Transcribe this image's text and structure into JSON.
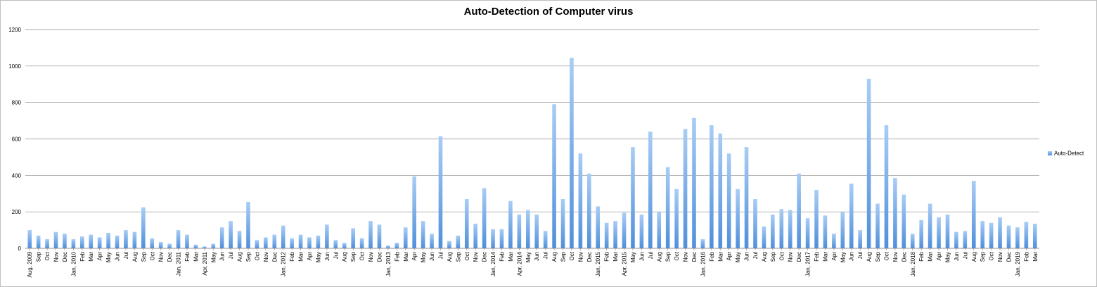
{
  "chart_data": {
    "type": "bar",
    "title": "Auto-Detection of Computer virus",
    "xlabel": "",
    "ylabel": "",
    "ylim": [
      0,
      1200
    ],
    "yticks": [
      0,
      200,
      400,
      600,
      800,
      1000,
      1200
    ],
    "grid": true,
    "legend_position": "right",
    "colors": {
      "bar_top": "#a9cdf5",
      "bar_bottom": "#4f8fdc",
      "grid": "#8c8c8c",
      "axis": "#8c8c8c"
    },
    "categories": [
      "Aug, 2009",
      "Sep",
      "Oct",
      "Nov",
      "Dec",
      "Jan, 2010",
      "Feb",
      "Mar",
      "Apr",
      "May",
      "Jun",
      "Jul",
      "Aug",
      "Sep",
      "Oct",
      "Nov",
      "Dec",
      "Jan, 2011",
      "Feb",
      "Mar",
      "Apr, 2011",
      "May",
      "Jun",
      "Jul",
      "Aug",
      "Sep",
      "Oct",
      "Nov",
      "Dec",
      "Jan, 2012",
      "Feb",
      "Mar",
      "Apr",
      "May",
      "Jun",
      "Jul",
      "Aug",
      "Sep",
      "Oct",
      "Nov",
      "Dec",
      "Jan, 2013",
      "Feb",
      "Mar",
      "Apr",
      "May",
      "Jun",
      "Jul",
      "Aug",
      "Sep",
      "Oct",
      "Nov",
      "Dec",
      "Jan, 2014",
      "Feb",
      "Mar",
      "Apr, 2014",
      "May",
      "Jun",
      "Jul",
      "Aug",
      "Sep",
      "Oct",
      "Nov",
      "Dec",
      "Jan, 2015",
      "Feb",
      "Mar",
      "Apr, 2015",
      "May",
      "Jun",
      "Jul",
      "Aug",
      "Sep",
      "Oct",
      "Nov",
      "Dec",
      "Jan, 2016",
      "Feb",
      "Mar",
      "Apr",
      "May",
      "Jun",
      "Jul",
      "Aug",
      "Sep",
      "Oct",
      "Nov",
      "Dec",
      "Jan, 2017",
      "Feb",
      "Mar",
      "Apr",
      "May",
      "Jun",
      "Jul",
      "Aug",
      "Sep",
      "Oct",
      "Nov",
      "Dec",
      "Jan, 2018",
      "Feb",
      "Mar",
      "Apr",
      "May",
      "Jun",
      "Jul",
      "Aug",
      "Sep",
      "Oct",
      "Nov",
      "Dec",
      "Jan, 2019",
      "Feb",
      "Mar"
    ],
    "series": [
      {
        "name": "Auto-Detect",
        "values": [
          100,
          70,
          50,
          90,
          80,
          50,
          65,
          75,
          60,
          85,
          70,
          100,
          90,
          225,
          55,
          35,
          25,
          100,
          75,
          20,
          10,
          25,
          115,
          150,
          95,
          255,
          45,
          60,
          75,
          125,
          55,
          75,
          60,
          70,
          130,
          45,
          30,
          110,
          55,
          150,
          130,
          15,
          30,
          115,
          395,
          150,
          80,
          615,
          40,
          70,
          270,
          135,
          330,
          105,
          105,
          260,
          185,
          210,
          185,
          95,
          790,
          270,
          1045,
          520,
          410,
          230,
          140,
          150,
          195,
          555,
          185,
          640,
          200,
          445,
          325,
          655,
          715,
          50,
          675,
          630,
          520,
          325,
          555,
          270,
          120,
          185,
          215,
          210,
          410,
          165,
          320,
          180,
          80,
          200,
          355,
          100,
          930,
          245,
          675,
          385,
          295,
          80,
          155,
          245,
          170,
          185,
          90,
          95,
          370,
          150,
          140,
          170,
          125,
          115,
          145,
          135
        ]
      }
    ]
  }
}
